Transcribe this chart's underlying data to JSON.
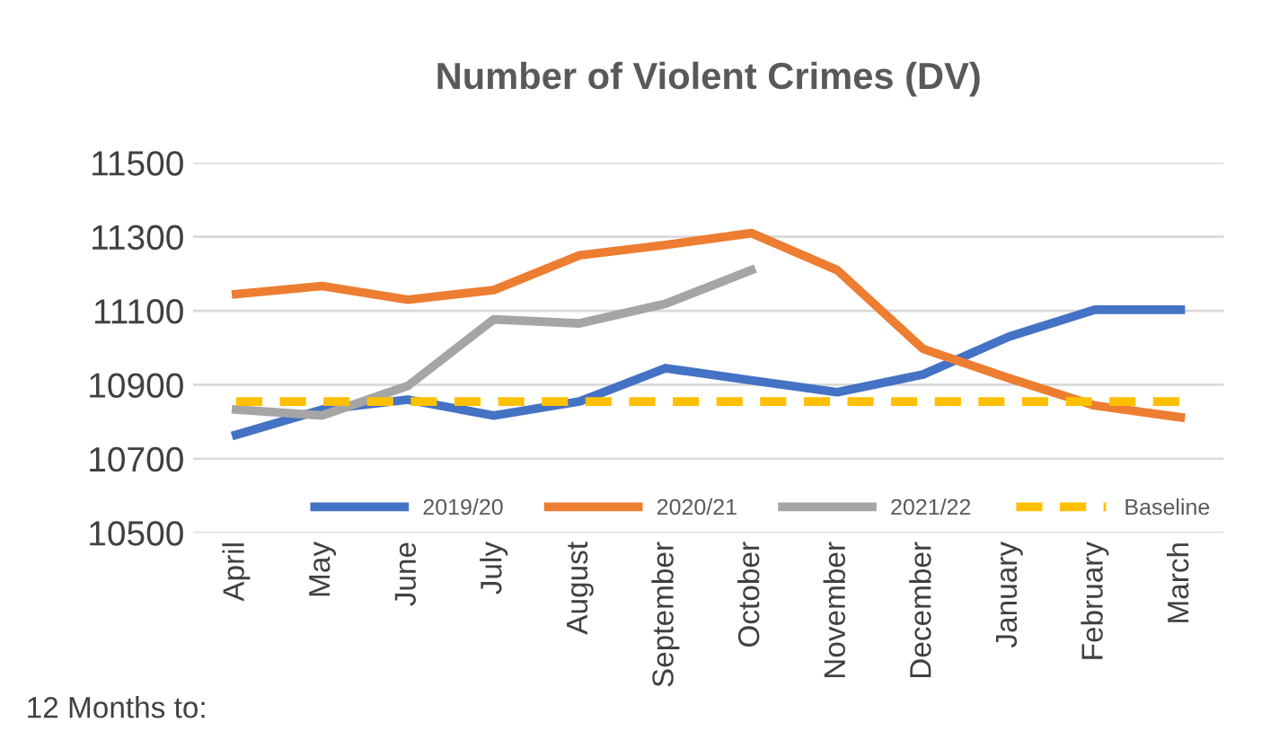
{
  "chart_data": {
    "type": "line",
    "title": "Number of Violent Crimes (DV)",
    "categories": [
      "April",
      "May",
      "June",
      "July",
      "August",
      "September",
      "October",
      "November",
      "December",
      "January",
      "February",
      "March"
    ],
    "series": [
      {
        "name": "2019/20",
        "color": "#4472c4",
        "values": [
          10765,
          10833,
          10860,
          10817,
          10855,
          10945,
          10912,
          10880,
          10928,
          11030,
          11103,
          11103
        ]
      },
      {
        "name": "2020/21",
        "color": "#ed7d31",
        "values": [
          11145,
          11167,
          11130,
          11156,
          11250,
          11278,
          11310,
          11210,
          10997,
          10918,
          10844,
          10812
        ]
      },
      {
        "name": "2021/22",
        "color": "#a5a5a5",
        "values": [
          10833,
          10817,
          10897,
          11077,
          11066,
          11119,
          11210,
          null,
          null,
          null,
          null,
          null
        ]
      },
      {
        "name": "Baseline",
        "color": "#ffc000",
        "line_style": "dashed",
        "values": [
          10855,
          10855,
          10855,
          10855,
          10855,
          10855,
          10855,
          10855,
          10855,
          10855,
          10855,
          10855
        ]
      }
    ],
    "ylim": [
      10500,
      11500
    ],
    "yticks": [
      10500,
      10700,
      10900,
      11100,
      11300,
      11500
    ],
    "grid": "y",
    "legend": "bottom right",
    "marker": "none",
    "annotations": [
      "12 Months to:"
    ]
  }
}
